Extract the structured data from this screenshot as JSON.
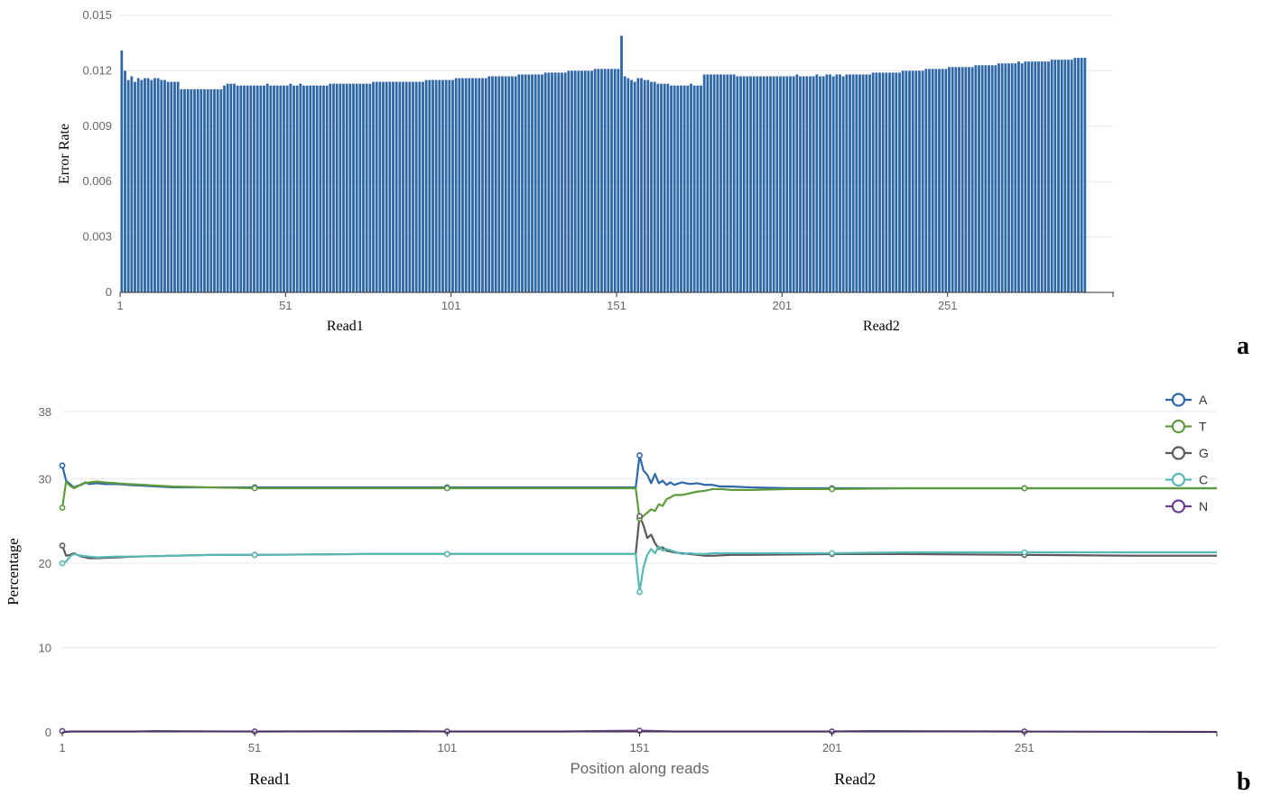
{
  "chart_data": [
    {
      "type": "bar",
      "panel_label": "a",
      "ylabel": "Error Rate",
      "ylim": [
        0,
        0.015
      ],
      "yticks": [
        "0",
        "0.003",
        "0.006",
        "0.009",
        "0.012",
        "0.015"
      ],
      "yticks_values": [
        0,
        0.003,
        0.006,
        0.009,
        0.012,
        0.015
      ],
      "xticks": [
        "1",
        "51",
        "101",
        "151",
        "201",
        "251"
      ],
      "xticks_values": [
        1,
        51,
        101,
        151,
        201,
        251
      ],
      "xlim": [
        1,
        300
      ],
      "group_labels": [
        "Read1",
        "Read2"
      ],
      "group_label_positions": [
        69,
        231
      ],
      "grid": true,
      "x_start": 1,
      "values": [
        0.0131,
        0.012,
        0.0115,
        0.0117,
        0.0114,
        0.0116,
        0.0115,
        0.0116,
        0.0116,
        0.0115,
        0.0116,
        0.0116,
        0.0115,
        0.0115,
        0.0114,
        0.0114,
        0.0114,
        0.0114,
        0.011,
        0.011,
        0.011,
        0.011,
        0.011,
        0.011,
        0.011,
        0.011,
        0.011,
        0.011,
        0.011,
        0.011,
        0.011,
        0.0112,
        0.0113,
        0.0113,
        0.0113,
        0.0112,
        0.0112,
        0.0112,
        0.0112,
        0.0112,
        0.0112,
        0.0112,
        0.0112,
        0.0112,
        0.0113,
        0.0112,
        0.0112,
        0.0112,
        0.0112,
        0.0112,
        0.0112,
        0.0113,
        0.0112,
        0.0112,
        0.0113,
        0.0112,
        0.0112,
        0.0112,
        0.0112,
        0.0112,
        0.0112,
        0.0112,
        0.0112,
        0.0113,
        0.0113,
        0.0113,
        0.0113,
        0.0113,
        0.0113,
        0.0113,
        0.0113,
        0.0113,
        0.0113,
        0.0113,
        0.0113,
        0.0113,
        0.0114,
        0.0114,
        0.0114,
        0.0114,
        0.0114,
        0.0114,
        0.0114,
        0.0114,
        0.0114,
        0.0114,
        0.0114,
        0.0114,
        0.0114,
        0.0114,
        0.0114,
        0.0114,
        0.0115,
        0.0115,
        0.0115,
        0.0115,
        0.0115,
        0.0115,
        0.0115,
        0.0115,
        0.0115,
        0.0116,
        0.0116,
        0.0116,
        0.0116,
        0.0116,
        0.0116,
        0.0116,
        0.0116,
        0.0116,
        0.0116,
        0.0117,
        0.0117,
        0.0117,
        0.0117,
        0.0117,
        0.0117,
        0.0117,
        0.0117,
        0.0117,
        0.0118,
        0.0118,
        0.0118,
        0.0118,
        0.0118,
        0.0118,
        0.0118,
        0.0118,
        0.0119,
        0.0119,
        0.0119,
        0.0119,
        0.0119,
        0.0119,
        0.0119,
        0.012,
        0.012,
        0.012,
        0.012,
        0.012,
        0.012,
        0.012,
        0.012,
        0.0121,
        0.0121,
        0.0121,
        0.0121,
        0.0121,
        0.0121,
        0.0121,
        0.0121,
        0.0139,
        0.0117,
        0.0116,
        0.0115,
        0.0114,
        0.0116,
        0.0116,
        0.0115,
        0.0115,
        0.0114,
        0.0114,
        0.0113,
        0.0113,
        0.0113,
        0.0113,
        0.0112,
        0.0112,
        0.0112,
        0.0112,
        0.0112,
        0.0112,
        0.0113,
        0.0112,
        0.0112,
        0.0112,
        0.0118,
        0.0118,
        0.0118,
        0.0118,
        0.0118,
        0.0118,
        0.0118,
        0.0118,
        0.0118,
        0.0118,
        0.0117,
        0.0117,
        0.0117,
        0.0117,
        0.0117,
        0.0117,
        0.0117,
        0.0117,
        0.0117,
        0.0117,
        0.0117,
        0.0117,
        0.0117,
        0.0117,
        0.0117,
        0.0117,
        0.0117,
        0.0117,
        0.0118,
        0.0117,
        0.0117,
        0.0117,
        0.0117,
        0.0117,
        0.0118,
        0.0117,
        0.0117,
        0.0118,
        0.0118,
        0.0117,
        0.0118,
        0.0118,
        0.0117,
        0.0118,
        0.0118,
        0.0118,
        0.0118,
        0.0118,
        0.0118,
        0.0118,
        0.0118,
        0.0119,
        0.0119,
        0.0119,
        0.0119,
        0.0119,
        0.0119,
        0.0119,
        0.0119,
        0.0119,
        0.012,
        0.012,
        0.012,
        0.012,
        0.012,
        0.012,
        0.012,
        0.0121,
        0.0121,
        0.0121,
        0.0121,
        0.0121,
        0.0121,
        0.0121,
        0.0122,
        0.0122,
        0.0122,
        0.0122,
        0.0122,
        0.0122,
        0.0122,
        0.0122,
        0.0123,
        0.0123,
        0.0123,
        0.0123,
        0.0123,
        0.0123,
        0.0123,
        0.0124,
        0.0124,
        0.0124,
        0.0124,
        0.0124,
        0.0124,
        0.0125,
        0.0124,
        0.0125,
        0.0125,
        0.0125,
        0.0125,
        0.0125,
        0.0125,
        0.0125,
        0.0125,
        0.0126,
        0.0126,
        0.0126,
        0.0126,
        0.0126,
        0.0126,
        0.0126,
        0.0127,
        0.0127,
        0.0127,
        0.0127
      ],
      "bar_color": "#2e67a8"
    },
    {
      "type": "line",
      "panel_label": "b",
      "xlabel": "Position along reads",
      "ylabel": "Percentage",
      "ylim": [
        0,
        38
      ],
      "yticks": [
        "0",
        "10",
        "20",
        "30",
        "38"
      ],
      "yticks_values": [
        0,
        10,
        20,
        30,
        38
      ],
      "xticks": [
        "1",
        "51",
        "101",
        "151",
        "201",
        "251"
      ],
      "xticks_values": [
        1,
        51,
        101,
        151,
        201,
        251
      ],
      "xlim": [
        1,
        301
      ],
      "group_labels": [
        "Read1",
        "Read2"
      ],
      "group_label_positions": [
        55,
        207
      ],
      "grid": true,
      "legend_position": "top-right",
      "marker_positions": [
        1,
        51,
        101,
        151,
        201,
        251
      ],
      "series": [
        {
          "name": "A",
          "color": "#2e67a8",
          "points": [
            [
              1,
              31.6
            ],
            [
              2,
              29.8
            ],
            [
              3,
              29.4
            ],
            [
              4,
              29.0
            ],
            [
              5,
              29.2
            ],
            [
              6,
              29.3
            ],
            [
              7,
              29.6
            ],
            [
              8,
              29.4
            ],
            [
              10,
              29.5
            ],
            [
              12,
              29.4
            ],
            [
              15,
              29.4
            ],
            [
              18,
              29.3
            ],
            [
              22,
              29.2
            ],
            [
              26,
              29.1
            ],
            [
              30,
              29.0
            ],
            [
              40,
              29.0
            ],
            [
              51,
              29.0
            ],
            [
              60,
              29.0
            ],
            [
              80,
              29.0
            ],
            [
              101,
              29.0
            ],
            [
              120,
              29.0
            ],
            [
              150,
              29.0
            ],
            [
              151,
              32.8
            ],
            [
              152,
              31.0
            ],
            [
              153,
              30.5
            ],
            [
              154,
              29.5
            ],
            [
              155,
              30.6
            ],
            [
              156,
              29.5
            ],
            [
              157,
              29.8
            ],
            [
              158,
              29.3
            ],
            [
              159,
              29.6
            ],
            [
              160,
              29.3
            ],
            [
              162,
              29.6
            ],
            [
              164,
              29.4
            ],
            [
              166,
              29.5
            ],
            [
              168,
              29.3
            ],
            [
              170,
              29.3
            ],
            [
              172,
              29.1
            ],
            [
              175,
              29.1
            ],
            [
              180,
              29.0
            ],
            [
              190,
              28.9
            ],
            [
              201,
              28.9
            ],
            [
              220,
              28.9
            ],
            [
              251,
              28.9
            ],
            [
              280,
              28.9
            ],
            [
              301,
              28.9
            ]
          ]
        },
        {
          "name": "T",
          "color": "#5f9a3c",
          "points": [
            [
              1,
              26.6
            ],
            [
              2,
              29.7
            ],
            [
              3,
              29.2
            ],
            [
              4,
              28.9
            ],
            [
              5,
              29.1
            ],
            [
              6,
              29.4
            ],
            [
              8,
              29.6
            ],
            [
              10,
              29.7
            ],
            [
              12,
              29.6
            ],
            [
              15,
              29.5
            ],
            [
              18,
              29.4
            ],
            [
              22,
              29.3
            ],
            [
              26,
              29.2
            ],
            [
              30,
              29.1
            ],
            [
              40,
              29.0
            ],
            [
              51,
              28.9
            ],
            [
              60,
              28.9
            ],
            [
              80,
              28.9
            ],
            [
              101,
              28.9
            ],
            [
              120,
              28.9
            ],
            [
              150,
              28.9
            ],
            [
              151,
              25.3
            ],
            [
              152,
              25.6
            ],
            [
              153,
              26.0
            ],
            [
              154,
              26.4
            ],
            [
              155,
              26.2
            ],
            [
              156,
              27.0
            ],
            [
              157,
              26.8
            ],
            [
              158,
              27.6
            ],
            [
              159,
              27.8
            ],
            [
              160,
              28.1
            ],
            [
              162,
              28.1
            ],
            [
              164,
              28.3
            ],
            [
              166,
              28.5
            ],
            [
              168,
              28.6
            ],
            [
              170,
              28.8
            ],
            [
              172,
              28.8
            ],
            [
              175,
              28.7
            ],
            [
              180,
              28.7
            ],
            [
              190,
              28.8
            ],
            [
              201,
              28.8
            ],
            [
              220,
              28.9
            ],
            [
              251,
              28.9
            ],
            [
              280,
              28.9
            ],
            [
              301,
              28.9
            ]
          ]
        },
        {
          "name": "G",
          "color": "#5a5a5a",
          "points": [
            [
              1,
              22.1
            ],
            [
              2,
              20.9
            ],
            [
              3,
              21.0
            ],
            [
              4,
              21.2
            ],
            [
              5,
              21.0
            ],
            [
              6,
              20.8
            ],
            [
              8,
              20.6
            ],
            [
              10,
              20.6
            ],
            [
              15,
              20.7
            ],
            [
              20,
              20.8
            ],
            [
              30,
              20.9
            ],
            [
              40,
              21.0
            ],
            [
              51,
              21.0
            ],
            [
              80,
              21.1
            ],
            [
              101,
              21.1
            ],
            [
              150,
              21.1
            ],
            [
              151,
              25.6
            ],
            [
              152,
              24.5
            ],
            [
              153,
              23.0
            ],
            [
              154,
              23.4
            ],
            [
              155,
              22.4
            ],
            [
              156,
              21.7
            ],
            [
              157,
              21.9
            ],
            [
              158,
              21.5
            ],
            [
              160,
              21.3
            ],
            [
              162,
              21.2
            ],
            [
              164,
              21.1
            ],
            [
              166,
              21.0
            ],
            [
              168,
              20.9
            ],
            [
              170,
              20.9
            ],
            [
              175,
              21.0
            ],
            [
              180,
              21.0
            ],
            [
              201,
              21.1
            ],
            [
              220,
              21.1
            ],
            [
              251,
              21.0
            ],
            [
              280,
              20.9
            ],
            [
              301,
              20.9
            ]
          ]
        },
        {
          "name": "C",
          "color": "#58b8b4",
          "points": [
            [
              1,
              20.0
            ],
            [
              2,
              20.2
            ],
            [
              3,
              20.8
            ],
            [
              4,
              21.1
            ],
            [
              5,
              21.0
            ],
            [
              6,
              20.9
            ],
            [
              8,
              20.8
            ],
            [
              10,
              20.7
            ],
            [
              15,
              20.8
            ],
            [
              20,
              20.8
            ],
            [
              30,
              20.9
            ],
            [
              40,
              21.0
            ],
            [
              51,
              21.0
            ],
            [
              80,
              21.1
            ],
            [
              101,
              21.1
            ],
            [
              150,
              21.1
            ],
            [
              151,
              16.6
            ],
            [
              152,
              19.5
            ],
            [
              153,
              21.0
            ],
            [
              154,
              21.7
            ],
            [
              155,
              21.2
            ],
            [
              156,
              22.0
            ],
            [
              157,
              21.5
            ],
            [
              158,
              21.7
            ],
            [
              160,
              21.4
            ],
            [
              162,
              21.1
            ],
            [
              164,
              21.2
            ],
            [
              166,
              21.1
            ],
            [
              168,
              21.1
            ],
            [
              170,
              21.2
            ],
            [
              180,
              21.2
            ],
            [
              201,
              21.2
            ],
            [
              220,
              21.3
            ],
            [
              251,
              21.3
            ],
            [
              280,
              21.3
            ],
            [
              301,
              21.3
            ]
          ]
        },
        {
          "name": "N",
          "color": "#6a3d8f",
          "points": [
            [
              1,
              0.1
            ],
            [
              2,
              0.0
            ],
            [
              3,
              0.05
            ],
            [
              20,
              0.05
            ],
            [
              25,
              0.1
            ],
            [
              51,
              0.05
            ],
            [
              90,
              0.1
            ],
            [
              101,
              0.05
            ],
            [
              130,
              0.05
            ],
            [
              140,
              0.1
            ],
            [
              151,
              0.15
            ],
            [
              160,
              0.05
            ],
            [
              201,
              0.05
            ],
            [
              210,
              0.1
            ],
            [
              251,
              0.05
            ],
            [
              301,
              0.0
            ]
          ]
        }
      ]
    }
  ]
}
